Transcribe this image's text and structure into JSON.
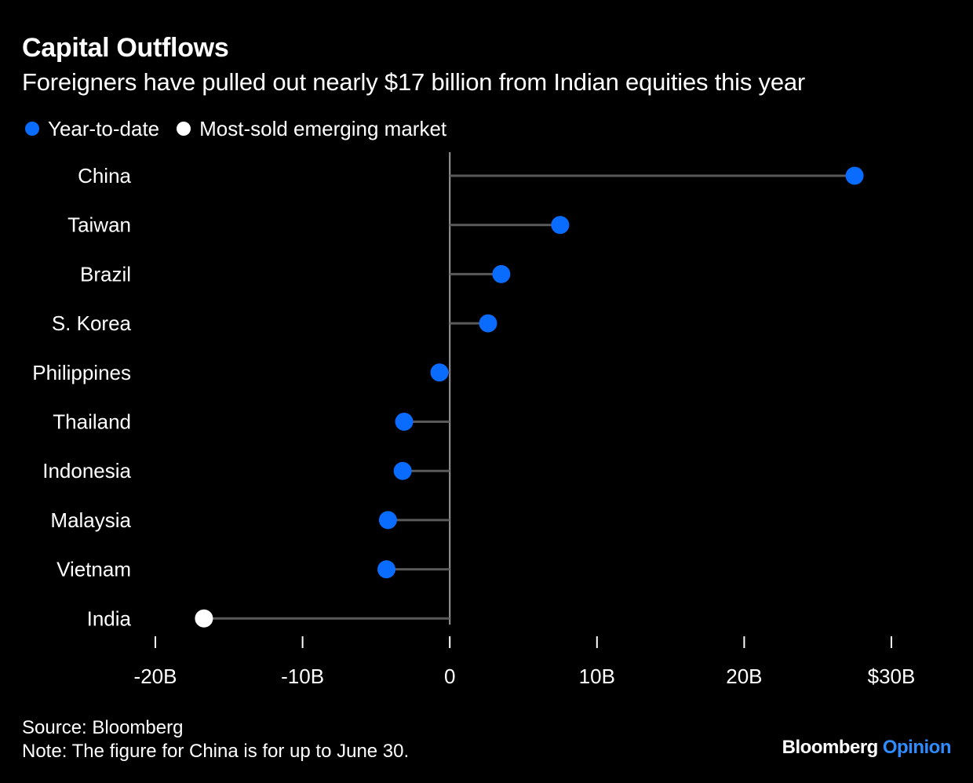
{
  "header": {
    "title": "Capital Outflows",
    "subtitle": "Foreigners have pulled out nearly $17 billion from Indian equities this year"
  },
  "legend": [
    {
      "label": "Year-to-date",
      "color": "#0a6cff"
    },
    {
      "label": "Most-sold emerging market",
      "color": "#ffffff"
    }
  ],
  "chart_data": {
    "type": "lollipop",
    "orientation": "horizontal",
    "title": "Capital Outflows",
    "subtitle": "Foreigners have pulled out nearly $17 billion from Indian equities this year",
    "xlabel": "",
    "ylabel": "",
    "xlim": [
      -20,
      30
    ],
    "x_ticks": [
      -20,
      -10,
      0,
      10,
      20,
      30
    ],
    "x_tick_labels": [
      "-20B",
      "-10B",
      "0",
      "10B",
      "20B",
      "$30B"
    ],
    "categories": [
      "China",
      "Taiwan",
      "Brazil",
      "S. Korea",
      "Philippines",
      "Thailand",
      "Indonesia",
      "Malaysia",
      "Vietnam",
      "India"
    ],
    "values": [
      27.5,
      7.5,
      3.5,
      2.6,
      -0.7,
      -3.1,
      -3.2,
      -4.2,
      -4.3,
      -16.7
    ],
    "highlight": "India",
    "colors": {
      "year_to_date": "#0a6cff",
      "most_sold": "#ffffff",
      "stem": "#5a5a5a",
      "zero_line": "#9a9a9a"
    },
    "grid": false,
    "legend_position": "top-left"
  },
  "footer": {
    "source": "Source: Bloomberg",
    "note": "Note: The figure for China is for up to June 30.",
    "brand_main": "Bloomberg",
    "brand_sub": "Opinion",
    "brand_sub_color": "#2f8cff"
  }
}
